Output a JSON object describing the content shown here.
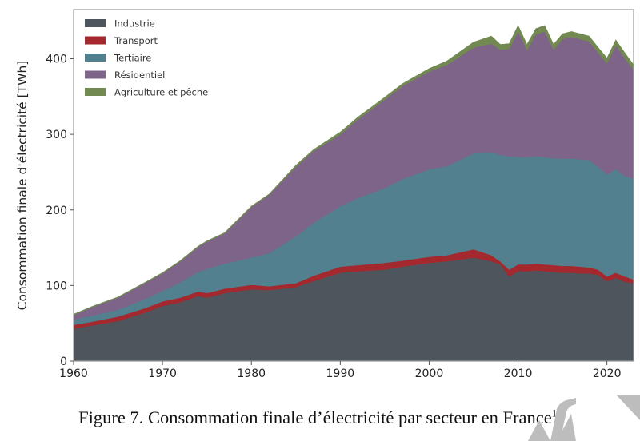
{
  "chart_data": {
    "type": "area",
    "stacked": true,
    "title": "",
    "xlabel": "",
    "ylabel": "Consommation finale d'électricité [TWh]",
    "xlim": [
      1960,
      2023
    ],
    "ylim": [
      0,
      465
    ],
    "xticks": [
      1960,
      1970,
      1980,
      1990,
      2000,
      2010,
      2020
    ],
    "yticks": [
      0,
      100,
      200,
      300,
      400
    ],
    "grid": false,
    "legend_position": "top-left",
    "x": [
      1960,
      1962,
      1965,
      1968,
      1970,
      1972,
      1974,
      1975,
      1977,
      1980,
      1982,
      1985,
      1987,
      1990,
      1992,
      1995,
      1997,
      2000,
      2002,
      2005,
      2007,
      2008,
      2009,
      2010,
      2011,
      2012,
      2013,
      2014,
      2015,
      2016,
      2017,
      2018,
      2019,
      2020,
      2021,
      2022,
      2023
    ],
    "series": [
      {
        "name": "Industrie",
        "color": "#4f555c",
        "values": [
          43,
          47,
          53,
          64,
          73,
          78,
          86,
          84,
          90,
          95,
          94,
          98,
          106,
          117,
          119,
          121,
          125,
          130,
          132,
          137,
          132,
          128,
          112,
          119,
          119,
          120,
          119,
          118,
          117,
          117,
          116,
          116,
          114,
          106,
          110,
          105,
          103
        ]
      },
      {
        "name": "Transport",
        "color": "#a3292e",
        "values": [
          5,
          5,
          6,
          6,
          6,
          6,
          6,
          6,
          6,
          6,
          5,
          5,
          7,
          8,
          8,
          9,
          8,
          8,
          8,
          11,
          8,
          4,
          9,
          9,
          9,
          9,
          9,
          9,
          9,
          9,
          9,
          8,
          7,
          6,
          7,
          7,
          5
        ]
      },
      {
        "name": "Tertiaire",
        "color": "#52808f",
        "values": [
          7,
          8,
          9,
          12,
          14,
          20,
          26,
          32,
          33,
          36,
          44,
          62,
          70,
          80,
          89,
          99,
          108,
          116,
          118,
          127,
          136,
          141,
          150,
          142,
          142,
          142,
          142,
          141,
          142,
          142,
          142,
          142,
          136,
          135,
          137,
          133,
          133
        ]
      },
      {
        "name": "Résidentiel",
        "color": "#7d6488",
        "values": [
          6,
          11,
          16,
          21,
          23,
          28,
          33,
          36,
          40,
          67,
          77,
          92,
          95,
          95,
          104,
          117,
          123,
          129,
          134,
          140,
          144,
          139,
          142,
          166,
          142,
          161,
          166,
          144,
          158,
          161,
          159,
          157,
          151,
          147,
          164,
          156,
          144
        ]
      },
      {
        "name": "Agriculture et pêche",
        "color": "#728a52",
        "values": [
          1,
          1,
          1,
          1,
          1,
          1,
          1,
          1,
          1,
          1,
          1,
          2,
          2,
          3,
          3,
          3,
          3,
          4,
          5,
          7,
          10,
          7,
          7,
          8,
          7,
          8,
          8,
          7,
          7,
          7,
          7,
          7,
          7,
          7,
          7,
          7,
          7
        ]
      }
    ]
  },
  "caption": {
    "text": "Figure 7. Consommation finale d’électricité par secteur en France",
    "footnote_marker": "1",
    "end": "."
  }
}
